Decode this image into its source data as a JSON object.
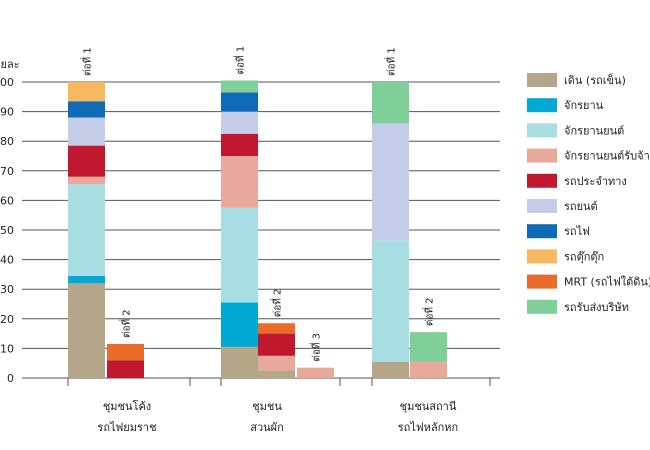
{
  "chart_data": {
    "type": "bar",
    "stacked": true,
    "ylabel": "ร้อยละ",
    "ylim": [
      0,
      100
    ],
    "yticks": [
      0,
      10,
      20,
      30,
      40,
      50,
      60,
      70,
      80,
      90,
      100
    ],
    "ytick_labels": [
      "0",
      "10",
      "20",
      "30",
      "40",
      "50",
      "60",
      "70",
      "80",
      "90",
      "100"
    ],
    "grid": true,
    "legend_position": "right",
    "legend": [
      {
        "name": "เดิน (รถเข็น)",
        "color": "#b5a68a"
      },
      {
        "name": "จักรยาน",
        "color": "#00a9d4"
      },
      {
        "name": "จักรยานยนต์",
        "color": "#a8dde3"
      },
      {
        "name": "จักรยานยนต์รับจ้าง",
        "color": "#e8a99a"
      },
      {
        "name": "รถประจำทาง",
        "color": "#c0182f"
      },
      {
        "name": "รถยนต์",
        "color": "#c5cce8"
      },
      {
        "name": "รถไฟ",
        "color": "#0e6bb8"
      },
      {
        "name": "รถตุ๊กตุ๊ก",
        "color": "#f7b860"
      },
      {
        "name": "MRT (รถไฟใต้ดิน)",
        "color": "#ea6b2a"
      },
      {
        "name": "รถรับส่งบริษัท",
        "color": "#7ecf98"
      }
    ],
    "groups": [
      {
        "label_lines": [
          "ชุมชนโค้ง",
          "รถไฟยมราช"
        ]
      },
      {
        "label_lines": [
          "ชุมชน",
          "สวนผัก"
        ]
      },
      {
        "label_lines": [
          "ชุมชนสถานี",
          "รถไฟหลักหก"
        ]
      }
    ],
    "bars": [
      {
        "group": 0,
        "label": "ต่อที่ 1",
        "segments": [
          {
            "mode": 0,
            "value": 32
          },
          {
            "mode": 1,
            "value": 2.5
          },
          {
            "mode": 2,
            "value": 31
          },
          {
            "mode": 3,
            "value": 2.5
          },
          {
            "mode": 4,
            "value": 10.5
          },
          {
            "mode": 5,
            "value": 9.5
          },
          {
            "mode": 6,
            "value": 5.5
          },
          {
            "mode": 7,
            "value": 6.5
          }
        ]
      },
      {
        "group": 0,
        "label": "ต่อที่ 2",
        "segments": [
          {
            "mode": 4,
            "value": 6
          },
          {
            "mode": 8,
            "value": 5.5
          }
        ]
      },
      {
        "group": 1,
        "label": "ต่อที่ 1",
        "segments": [
          {
            "mode": 0,
            "value": 10.5
          },
          {
            "mode": 1,
            "value": 15
          },
          {
            "mode": 2,
            "value": 32
          },
          {
            "mode": 3,
            "value": 17.5
          },
          {
            "mode": 4,
            "value": 7.5
          },
          {
            "mode": 5,
            "value": 7.5
          },
          {
            "mode": 6,
            "value": 6.5
          },
          {
            "mode": 9,
            "value": 4
          }
        ]
      },
      {
        "group": 1,
        "label": "ต่อที่ 2",
        "segments": [
          {
            "mode": 0,
            "value": 2.5
          },
          {
            "mode": 3,
            "value": 5
          },
          {
            "mode": 4,
            "value": 7.5
          },
          {
            "mode": 8,
            "value": 3.5
          }
        ]
      },
      {
        "group": 1,
        "label": "ต่อที่ 3",
        "segments": [
          {
            "mode": 3,
            "value": 3.5
          }
        ]
      },
      {
        "group": 2,
        "label": "ต่อที่ 1",
        "segments": [
          {
            "mode": 0,
            "value": 5.5
          },
          {
            "mode": 2,
            "value": 41
          },
          {
            "mode": 5,
            "value": 39.5
          },
          {
            "mode": 9,
            "value": 14
          }
        ]
      },
      {
        "group": 2,
        "label": "ต่อที่ 2",
        "segments": [
          {
            "mode": 3,
            "value": 5.5
          },
          {
            "mode": 9,
            "value": 10
          }
        ]
      }
    ]
  }
}
